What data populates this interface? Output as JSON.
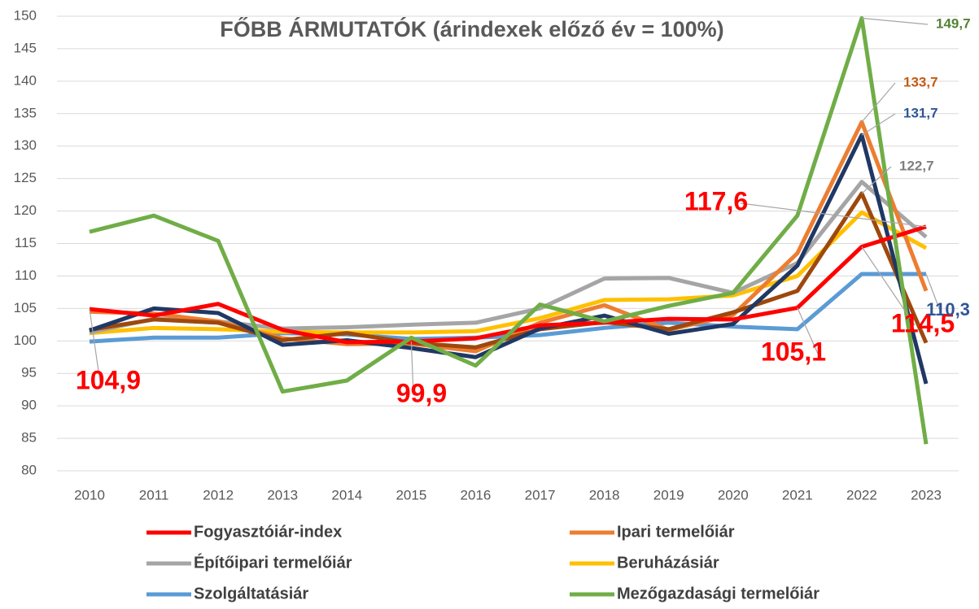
{
  "chart_data": {
    "type": "line",
    "title": "FŐBB ÁRMUTATÓK (árindexek előző év = 100%)",
    "categories": [
      "2010",
      "2011",
      "2012",
      "2013",
      "2014",
      "2015",
      "2016",
      "2017",
      "2018",
      "2019",
      "2020",
      "2021",
      "2022",
      "2023"
    ],
    "ylim": [
      80,
      150
    ],
    "yticks": [
      80,
      85,
      90,
      95,
      100,
      105,
      110,
      115,
      120,
      125,
      130,
      135,
      140,
      145,
      150
    ],
    "grid": true,
    "series": [
      {
        "name": "Fogyasztóiár-index",
        "color": "#ff0000",
        "label_color": "#ff0000",
        "values": [
          104.9,
          103.9,
          105.7,
          101.7,
          99.8,
          99.9,
          100.4,
          102.4,
          102.8,
          103.4,
          103.3,
          105.1,
          114.5,
          117.6
        ],
        "value_labels": [
          "104,9",
          null,
          null,
          null,
          null,
          "99,9",
          null,
          null,
          null,
          null,
          null,
          "105,1",
          "114,5",
          "117,6"
        ]
      },
      {
        "name": "Ipari termelőiár",
        "color": "#ed7d31",
        "label_color": "#c55a11",
        "values": [
          104.5,
          104.2,
          103.0,
          100.4,
          99.5,
          99.6,
          98.4,
          102.8,
          105.5,
          101.7,
          104.0,
          113.5,
          133.7,
          107.7
        ],
        "value_labels": [
          null,
          null,
          null,
          null,
          null,
          null,
          null,
          null,
          null,
          null,
          null,
          null,
          "133,7",
          null
        ]
      },
      {
        "name": "Építőipari termelőiár",
        "color": "#a5a5a5",
        "values": [
          101.3,
          103.4,
          103.0,
          101.9,
          102.1,
          102.5,
          102.8,
          105.0,
          109.6,
          109.7,
          107.4,
          112.0,
          124.5,
          116.0
        ]
      },
      {
        "name": "Beruházásiár",
        "color": "#ffc000",
        "values": [
          101.2,
          102.0,
          101.8,
          101.4,
          101.3,
          101.3,
          101.5,
          103.5,
          106.3,
          106.4,
          107.0,
          110.0,
          119.8,
          114.3
        ]
      },
      {
        "name": "Szolgáltatásiár",
        "color": "#5b9bd5",
        "label_color": "#2f5597",
        "values": [
          99.9,
          100.5,
          100.5,
          101.2,
          101.0,
          100.3,
          100.5,
          100.9,
          102.0,
          102.8,
          102.2,
          101.8,
          110.3,
          110.3
        ],
        "value_labels": [
          null,
          null,
          null,
          null,
          null,
          null,
          null,
          null,
          null,
          null,
          null,
          null,
          null,
          "110,3"
        ]
      },
      {
        "name": "Mezőgazdasági termelőiár",
        "color": "#70ad47",
        "label_color": "#548235",
        "values": [
          116.8,
          119.3,
          115.4,
          92.2,
          93.9,
          100.5,
          96.2,
          105.6,
          103.0,
          105.4,
          107.4,
          119.3,
          149.7,
          84.1
        ],
        "value_labels": [
          null,
          null,
          null,
          null,
          null,
          null,
          null,
          null,
          null,
          null,
          null,
          null,
          "149,7",
          null
        ]
      },
      {
        "color": "#203864",
        "label_color": "#2f5597",
        "values": [
          101.6,
          105.0,
          104.3,
          99.4,
          100.1,
          98.9,
          97.5,
          101.9,
          103.9,
          101.1,
          102.6,
          111.6,
          131.7,
          93.4
        ],
        "value_labels": [
          null,
          null,
          null,
          null,
          null,
          null,
          null,
          null,
          null,
          null,
          null,
          null,
          "131,7",
          null
        ]
      },
      {
        "color": "#9e480e",
        "label_color": "#7f7f7f",
        "values": [
          101.7,
          103.3,
          102.8,
          100.1,
          101.2,
          99.7,
          99.0,
          101.8,
          102.9,
          101.8,
          104.4,
          107.7,
          122.7,
          99.7
        ],
        "value_labels": [
          null,
          null,
          null,
          null,
          null,
          null,
          null,
          null,
          null,
          null,
          null,
          null,
          "122,7",
          null
        ]
      }
    ]
  }
}
